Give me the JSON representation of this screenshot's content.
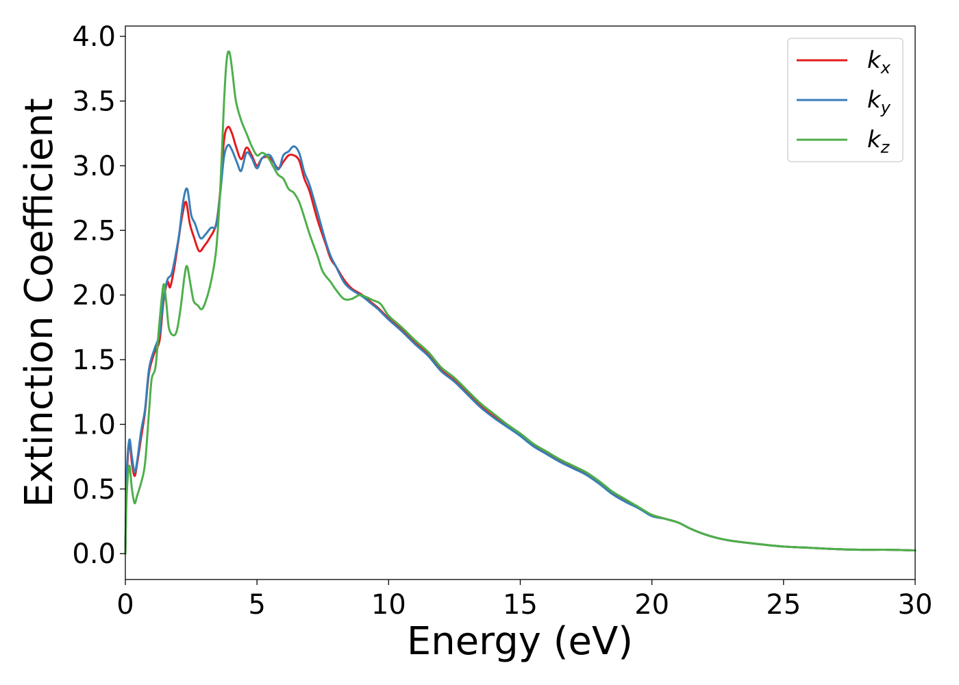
{
  "chart_data": {
    "type": "line",
    "title": "",
    "xlabel": "Energy (eV)",
    "ylabel": "Extinction Coefficient",
    "xlim": [
      0,
      30
    ],
    "ylim": [
      -0.2,
      4.08
    ],
    "xticks": [
      0,
      5,
      10,
      15,
      20,
      25,
      30
    ],
    "yticks": [
      0.0,
      0.5,
      1.0,
      1.5,
      2.0,
      2.5,
      3.0,
      3.5,
      4.0
    ],
    "grid": false,
    "legend_position": "top-right",
    "series": [
      {
        "name": "k",
        "sub": "x",
        "color": "#e41a1c",
        "points": [
          [
            0,
            0.0
          ],
          [
            0.05,
            0.55
          ],
          [
            0.15,
            0.86
          ],
          [
            0.25,
            0.7
          ],
          [
            0.35,
            0.6
          ],
          [
            0.45,
            0.7
          ],
          [
            0.6,
            0.9
          ],
          [
            0.75,
            1.1
          ],
          [
            0.9,
            1.4
          ],
          [
            1.1,
            1.55
          ],
          [
            1.3,
            1.65
          ],
          [
            1.45,
            1.95
          ],
          [
            1.6,
            2.1
          ],
          [
            1.7,
            2.06
          ],
          [
            1.85,
            2.2
          ],
          [
            2.0,
            2.4
          ],
          [
            2.15,
            2.6
          ],
          [
            2.3,
            2.72
          ],
          [
            2.45,
            2.55
          ],
          [
            2.6,
            2.45
          ],
          [
            2.8,
            2.34
          ],
          [
            3.0,
            2.38
          ],
          [
            3.2,
            2.44
          ],
          [
            3.45,
            2.55
          ],
          [
            3.6,
            2.8
          ],
          [
            3.75,
            3.2
          ],
          [
            3.9,
            3.3
          ],
          [
            4.05,
            3.25
          ],
          [
            4.2,
            3.15
          ],
          [
            4.4,
            3.05
          ],
          [
            4.6,
            3.14
          ],
          [
            4.8,
            3.08
          ],
          [
            5.0,
            3.0
          ],
          [
            5.2,
            3.06
          ],
          [
            5.5,
            3.06
          ],
          [
            5.8,
            2.98
          ],
          [
            6.0,
            3.03
          ],
          [
            6.2,
            3.08
          ],
          [
            6.4,
            3.08
          ],
          [
            6.6,
            3.04
          ],
          [
            6.8,
            2.9
          ],
          [
            7.0,
            2.8
          ],
          [
            7.3,
            2.58
          ],
          [
            7.6,
            2.4
          ],
          [
            7.8,
            2.28
          ],
          [
            8.0,
            2.22
          ],
          [
            8.3,
            2.12
          ],
          [
            8.6,
            2.05
          ],
          [
            9.0,
            2.0
          ],
          [
            9.3,
            1.95
          ],
          [
            9.6,
            1.9
          ],
          [
            10.0,
            1.82
          ],
          [
            10.5,
            1.73
          ],
          [
            11.0,
            1.63
          ],
          [
            11.5,
            1.54
          ],
          [
            12.0,
            1.42
          ],
          [
            12.5,
            1.34
          ],
          [
            13.0,
            1.24
          ],
          [
            13.5,
            1.14
          ],
          [
            14.0,
            1.06
          ],
          [
            14.5,
            0.99
          ],
          [
            15.0,
            0.92
          ],
          [
            15.5,
            0.84
          ],
          [
            16.0,
            0.78
          ],
          [
            16.5,
            0.72
          ],
          [
            17.0,
            0.67
          ],
          [
            17.5,
            0.62
          ],
          [
            18.0,
            0.55
          ],
          [
            18.5,
            0.47
          ],
          [
            19.0,
            0.41
          ],
          [
            19.5,
            0.35
          ],
          [
            20.0,
            0.3
          ],
          [
            20.5,
            0.27
          ],
          [
            21.0,
            0.24
          ],
          [
            21.5,
            0.19
          ],
          [
            22.0,
            0.15
          ],
          [
            22.5,
            0.12
          ],
          [
            23.0,
            0.1
          ],
          [
            24.0,
            0.075
          ],
          [
            25.0,
            0.055
          ],
          [
            26.0,
            0.045
          ],
          [
            27.0,
            0.035
          ],
          [
            28.0,
            0.03
          ],
          [
            29.0,
            0.03
          ],
          [
            30.0,
            0.025
          ]
        ]
      },
      {
        "name": "k",
        "sub": "y",
        "color": "#377eb8",
        "points": [
          [
            0,
            0.0
          ],
          [
            0.05,
            0.6
          ],
          [
            0.15,
            0.88
          ],
          [
            0.25,
            0.75
          ],
          [
            0.35,
            0.63
          ],
          [
            0.45,
            0.72
          ],
          [
            0.6,
            0.95
          ],
          [
            0.75,
            1.12
          ],
          [
            0.9,
            1.43
          ],
          [
            1.1,
            1.58
          ],
          [
            1.3,
            1.7
          ],
          [
            1.45,
            1.97
          ],
          [
            1.6,
            2.12
          ],
          [
            1.75,
            2.16
          ],
          [
            1.9,
            2.3
          ],
          [
            2.05,
            2.48
          ],
          [
            2.2,
            2.73
          ],
          [
            2.35,
            2.82
          ],
          [
            2.5,
            2.62
          ],
          [
            2.65,
            2.55
          ],
          [
            2.85,
            2.44
          ],
          [
            3.05,
            2.47
          ],
          [
            3.25,
            2.52
          ],
          [
            3.45,
            2.54
          ],
          [
            3.6,
            2.78
          ],
          [
            3.75,
            3.07
          ],
          [
            3.9,
            3.16
          ],
          [
            4.05,
            3.12
          ],
          [
            4.25,
            3.02
          ],
          [
            4.4,
            2.96
          ],
          [
            4.6,
            3.1
          ],
          [
            4.8,
            3.06
          ],
          [
            5.0,
            2.98
          ],
          [
            5.2,
            3.06
          ],
          [
            5.5,
            3.08
          ],
          [
            5.8,
            2.97
          ],
          [
            6.0,
            3.08
          ],
          [
            6.2,
            3.11
          ],
          [
            6.4,
            3.15
          ],
          [
            6.6,
            3.1
          ],
          [
            6.8,
            2.95
          ],
          [
            7.0,
            2.85
          ],
          [
            7.3,
            2.64
          ],
          [
            7.6,
            2.42
          ],
          [
            7.8,
            2.3
          ],
          [
            8.0,
            2.22
          ],
          [
            8.3,
            2.1
          ],
          [
            8.6,
            2.04
          ],
          [
            9.0,
            1.99
          ],
          [
            9.3,
            1.94
          ],
          [
            9.6,
            1.89
          ],
          [
            10.0,
            1.81
          ],
          [
            10.5,
            1.72
          ],
          [
            11.0,
            1.62
          ],
          [
            11.5,
            1.53
          ],
          [
            12.0,
            1.41
          ],
          [
            12.5,
            1.33
          ],
          [
            13.0,
            1.23
          ],
          [
            13.5,
            1.13
          ],
          [
            14.0,
            1.05
          ],
          [
            14.5,
            0.98
          ],
          [
            15.0,
            0.91
          ],
          [
            15.5,
            0.83
          ],
          [
            16.0,
            0.77
          ],
          [
            16.5,
            0.71
          ],
          [
            17.0,
            0.66
          ],
          [
            17.5,
            0.61
          ],
          [
            18.0,
            0.54
          ],
          [
            18.5,
            0.46
          ],
          [
            19.0,
            0.4
          ],
          [
            19.5,
            0.35
          ],
          [
            20.0,
            0.29
          ],
          [
            20.5,
            0.27
          ],
          [
            21.0,
            0.24
          ],
          [
            21.5,
            0.19
          ],
          [
            22.0,
            0.15
          ],
          [
            22.5,
            0.12
          ],
          [
            23.0,
            0.1
          ],
          [
            24.0,
            0.075
          ],
          [
            25.0,
            0.055
          ],
          [
            26.0,
            0.045
          ],
          [
            27.0,
            0.035
          ],
          [
            28.0,
            0.03
          ],
          [
            29.0,
            0.03
          ],
          [
            30.0,
            0.025
          ]
        ]
      },
      {
        "name": "k",
        "sub": "z",
        "color": "#4daf4a",
        "points": [
          [
            0,
            0.0
          ],
          [
            0.05,
            0.45
          ],
          [
            0.15,
            0.68
          ],
          [
            0.25,
            0.5
          ],
          [
            0.35,
            0.39
          ],
          [
            0.45,
            0.45
          ],
          [
            0.6,
            0.55
          ],
          [
            0.75,
            0.7
          ],
          [
            0.9,
            1.1
          ],
          [
            1.0,
            1.35
          ],
          [
            1.15,
            1.45
          ],
          [
            1.3,
            1.8
          ],
          [
            1.45,
            2.08
          ],
          [
            1.55,
            1.95
          ],
          [
            1.65,
            1.75
          ],
          [
            1.8,
            1.69
          ],
          [
            1.95,
            1.72
          ],
          [
            2.1,
            1.9
          ],
          [
            2.25,
            2.15
          ],
          [
            2.35,
            2.22
          ],
          [
            2.5,
            2.05
          ],
          [
            2.6,
            1.95
          ],
          [
            2.75,
            1.92
          ],
          [
            2.9,
            1.89
          ],
          [
            3.05,
            1.95
          ],
          [
            3.25,
            2.1
          ],
          [
            3.45,
            2.35
          ],
          [
            3.6,
            2.8
          ],
          [
            3.75,
            3.5
          ],
          [
            3.85,
            3.82
          ],
          [
            3.95,
            3.88
          ],
          [
            4.05,
            3.75
          ],
          [
            4.2,
            3.5
          ],
          [
            4.4,
            3.35
          ],
          [
            4.6,
            3.25
          ],
          [
            4.8,
            3.15
          ],
          [
            5.0,
            3.08
          ],
          [
            5.2,
            3.1
          ],
          [
            5.4,
            3.07
          ],
          [
            5.6,
            3.0
          ],
          [
            5.8,
            2.93
          ],
          [
            6.0,
            2.9
          ],
          [
            6.2,
            2.82
          ],
          [
            6.4,
            2.79
          ],
          [
            6.6,
            2.72
          ],
          [
            6.8,
            2.6
          ],
          [
            7.0,
            2.47
          ],
          [
            7.3,
            2.3
          ],
          [
            7.5,
            2.18
          ],
          [
            7.8,
            2.1
          ],
          [
            8.0,
            2.04
          ],
          [
            8.3,
            1.97
          ],
          [
            8.6,
            1.97
          ],
          [
            8.9,
            2.0
          ],
          [
            9.2,
            1.98
          ],
          [
            9.4,
            1.96
          ],
          [
            9.7,
            1.93
          ],
          [
            10.0,
            1.84
          ],
          [
            10.5,
            1.75
          ],
          [
            11.0,
            1.65
          ],
          [
            11.5,
            1.56
          ],
          [
            12.0,
            1.44
          ],
          [
            12.5,
            1.36
          ],
          [
            13.0,
            1.26
          ],
          [
            13.5,
            1.16
          ],
          [
            14.0,
            1.08
          ],
          [
            14.5,
            1.0
          ],
          [
            15.0,
            0.93
          ],
          [
            15.5,
            0.85
          ],
          [
            16.0,
            0.79
          ],
          [
            16.5,
            0.73
          ],
          [
            17.0,
            0.68
          ],
          [
            17.5,
            0.63
          ],
          [
            18.0,
            0.56
          ],
          [
            18.5,
            0.48
          ],
          [
            19.0,
            0.42
          ],
          [
            19.5,
            0.36
          ],
          [
            20.0,
            0.3
          ],
          [
            20.5,
            0.27
          ],
          [
            21.0,
            0.24
          ],
          [
            21.5,
            0.19
          ],
          [
            22.0,
            0.15
          ],
          [
            22.5,
            0.12
          ],
          [
            23.0,
            0.1
          ],
          [
            24.0,
            0.075
          ],
          [
            25.0,
            0.055
          ],
          [
            26.0,
            0.045
          ],
          [
            27.0,
            0.035
          ],
          [
            28.0,
            0.03
          ],
          [
            29.0,
            0.03
          ],
          [
            30.0,
            0.025
          ]
        ]
      }
    ]
  }
}
